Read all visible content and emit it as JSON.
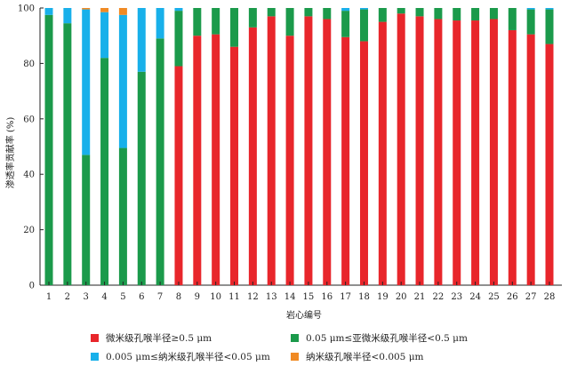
{
  "chart_data": {
    "type": "bar",
    "stacked": true,
    "title": "",
    "xlabel": "岩心编号",
    "ylabel": "渗透率贡献率 (%)",
    "ylim": [
      0,
      100
    ],
    "yticks": [
      0,
      20,
      40,
      60,
      80,
      100
    ],
    "grid": false,
    "legend_position": "bottom",
    "categories": [
      "1",
      "2",
      "3",
      "4",
      "5",
      "6",
      "7",
      "8",
      "9",
      "10",
      "11",
      "12",
      "13",
      "14",
      "15",
      "16",
      "17",
      "18",
      "19",
      "20",
      "21",
      "22",
      "23",
      "24",
      "25",
      "26",
      "27",
      "28"
    ],
    "series": [
      {
        "name": "微米级孔喉半径≥0.5 μm",
        "color": "#e8262b",
        "values": [
          0,
          0,
          0,
          0,
          0,
          0,
          0,
          79,
          90,
          90.5,
          86,
          93,
          97,
          90,
          97,
          96,
          89.5,
          88,
          95,
          98,
          97,
          96,
          95.5,
          95.5,
          96,
          92,
          90.5,
          87
        ]
      },
      {
        "name": "0.05 μm≤亚微米级孔喉半径<0.5 μm",
        "color": "#1b9a4b",
        "values": [
          97.5,
          94.5,
          47,
          82,
          49.5,
          77,
          89,
          20,
          10,
          9.5,
          14,
          7,
          3,
          10,
          3,
          4,
          9.5,
          11.5,
          5,
          2,
          3,
          4,
          4.5,
          4.5,
          4,
          8,
          9,
          12.5
        ]
      },
      {
        "name": "0.005 μm≤纳米级孔喉半径<0.05 μm",
        "color": "#18b0ea",
        "values": [
          2.5,
          5.5,
          52.5,
          16.5,
          48,
          23,
          11,
          1,
          0,
          0,
          0,
          0,
          0,
          0,
          0,
          0,
          1,
          0.5,
          0,
          0,
          0,
          0,
          0,
          0,
          0,
          0,
          0.5,
          0.5
        ]
      },
      {
        "name": "纳米级孔喉半径<0.005 μm",
        "color": "#f08a24",
        "values": [
          0,
          0,
          0.5,
          1.5,
          2.5,
          0,
          0,
          0,
          0,
          0,
          0,
          0,
          0,
          0,
          0,
          0,
          0,
          0,
          0,
          0,
          0,
          0,
          0,
          0,
          0,
          0,
          0,
          0
        ]
      }
    ]
  }
}
